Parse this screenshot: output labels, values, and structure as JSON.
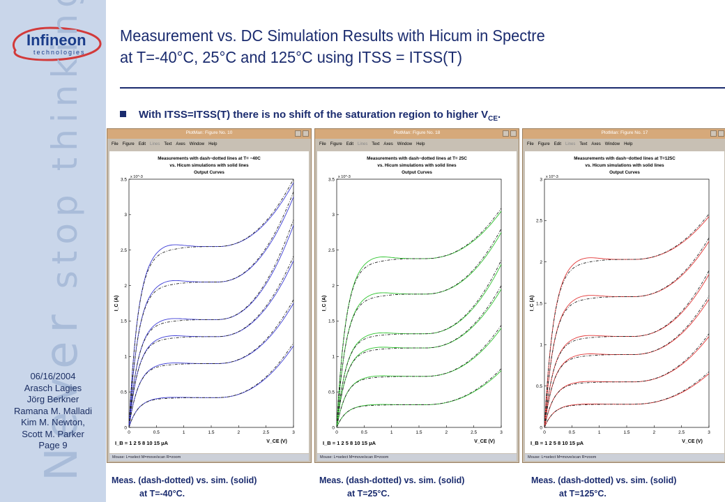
{
  "sidebar": {
    "logo_name": "Infineon",
    "logo_sub": "technologies",
    "watermark_1": "stop thinking",
    "watermark_2": "Never",
    "info": [
      "06/16/2004",
      "Arasch Lagies",
      "Jörg Berkner",
      "Ramana M. Malladi",
      "Kim M. Newton,",
      "Scott M. Parker",
      "Page 9"
    ]
  },
  "title_line1": "Measurement vs. DC Simulation Results with Hicum in Spectre",
  "title_line2": "at T=-40°C, 25°C and 125°C using ITSS = ITSS(T)",
  "bullet_text": "With ITSS=ITSS(T) there is no shift of the saturation region to higher V",
  "bullet_sub": "CE",
  "bullet_end": ".",
  "menu": [
    "File",
    "Figure",
    "Edit",
    "Lines",
    "Text",
    "Axes",
    "Window",
    "Help"
  ],
  "status_text": "Mouse: L=select  M=move/scan  R=zoom",
  "colors": {
    "blue": "#3b3bd6",
    "green": "#2ec52e",
    "red": "#e23535",
    "meas": "#222222"
  },
  "panels": [
    {
      "window_title": "PlotMan:  Figure No. 10",
      "plot_title": [
        "Measurements with dash−dotted lines at T= −40C",
        "vs. Hicum simulations with solid lines",
        "Output Curves"
      ],
      "sim_color": "#3b3bd6",
      "caption1": "Meas. (dash-dotted) vs. sim. (solid)",
      "caption2": "at T=-40°C."
    },
    {
      "window_title": "PlotMan:  Figure No. 18",
      "plot_title": [
        "Measurements with dash−dotted lines at T= 25C",
        "vs. Hicum simulations with solid lines",
        "Output Curves"
      ],
      "sim_color": "#2ec52e",
      "caption1": "Meas. (dash-dotted) vs. sim. (solid)",
      "caption2": "at T=25°C."
    },
    {
      "window_title": "PlotMan:  Figure No. 17",
      "plot_title": [
        "Measurements with dash−dotted lines at T=125C",
        "vs. Hicum simulations with solid lines",
        "Output Curves"
      ],
      "sim_color": "#e23535",
      "caption1": "Meas. (dash-dotted) vs. sim. (solid)",
      "caption2": "at T=125°C."
    }
  ],
  "chart_data": [
    {
      "type": "line",
      "title": "Measurements with dash−dotted lines at T= −40C vs. Hicum simulations with solid lines Output Curves",
      "xlabel": "V_CE (V)",
      "ylabel": "I_C (A)",
      "y_scale_label": "x 10^-3",
      "xlim": [
        0,
        3
      ],
      "ylim": [
        0,
        3.5
      ],
      "xticks": [
        "0",
        "0.5",
        "1",
        "1.5",
        "2",
        "2.5",
        "3"
      ],
      "yticks": [
        "0",
        "0.5",
        "1",
        "1.5",
        "2",
        "2.5",
        "3",
        "3.5"
      ],
      "ib_legend": "I_B = 1  2  5  8  10  15  μA",
      "series_plateaus_mA": [
        0.42,
        0.9,
        1.28,
        1.52,
        2.05,
        2.55
      ],
      "end_values_mA": [
        1.15,
        1.75,
        2.35,
        2.85,
        3.25,
        3.45
      ]
    },
    {
      "type": "line",
      "title": "Measurements with dash−dotted lines at T= 25C vs. Hicum simulations with solid lines Output Curves",
      "xlabel": "V_CE (V)",
      "ylabel": "I_C (A)",
      "y_scale_label": "x 10^-3",
      "xlim": [
        0,
        3
      ],
      "ylim": [
        0,
        3.5
      ],
      "xticks": [
        "0",
        "0.5",
        "1",
        "1.5",
        "2",
        "2.5",
        "3"
      ],
      "yticks": [
        "0",
        "0.5",
        "1",
        "1.5",
        "2",
        "2.5",
        "3",
        "3.5"
      ],
      "ib_legend": "I_B = 1  2  5  8  10  15  μA",
      "series_plateaus_mA": [
        0.32,
        0.72,
        1.12,
        1.32,
        1.88,
        2.38
      ],
      "end_values_mA": [
        0.8,
        1.4,
        1.95,
        2.3,
        2.75,
        3.05
      ]
    },
    {
      "type": "line",
      "title": "Measurements with dash−dotted lines at T=125C vs. Hicum simulations with solid lines Output Curves",
      "xlabel": "V_CE (V)",
      "ylabel": "I_C (A)",
      "y_scale_label": "x 10^-3",
      "xlim": [
        0,
        3
      ],
      "ylim": [
        0,
        3
      ],
      "xticks": [
        "0",
        "0.5",
        "1",
        "1.5",
        "2",
        "2.5",
        "3"
      ],
      "yticks": [
        "0",
        "0.5",
        "1",
        "1.5",
        "2",
        "2.5",
        "3"
      ],
      "ib_legend": "I_B = 1  2  5  8  10  15  μA",
      "series_plateaus_mA": [
        0.28,
        0.55,
        0.88,
        1.1,
        1.58,
        2.03
      ],
      "end_values_mA": [
        0.65,
        1.1,
        1.55,
        1.85,
        2.25,
        2.55
      ]
    }
  ]
}
